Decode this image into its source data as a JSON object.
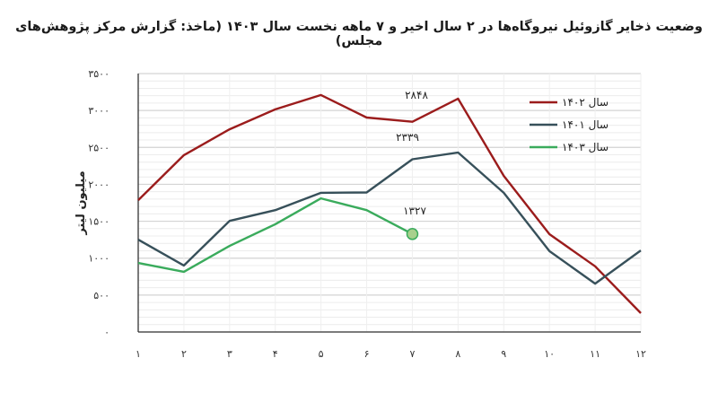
{
  "title": "وضعیت ذخایر گازوئیل نیروگاه‌ها در ۲ سال اخیر و ۷ ماهه نخست سال ۱۴۰۳ (ماخذ: گزارش مرکز پژوهش‌های مجلس)",
  "chart_data": {
    "type": "line",
    "title": "وضعیت ذخایر گازوئیل نیروگاه‌ها در ۲ سال اخیر و ۷ ماهه نخست سال ۱۴۰۳ (ماخذ: گزارش مرکز پژوهش‌های مجلس)",
    "xlabel": "",
    "ylabel": "میلیون لیتر",
    "x": [
      1,
      2,
      3,
      4,
      5,
      6,
      7,
      8,
      9,
      10,
      11,
      12
    ],
    "categories": [
      "۱",
      "۲",
      "۳",
      "۴",
      "۵",
      "۶",
      "۷",
      "۸",
      "۹",
      "۱۰",
      "۱۱",
      "۱۲"
    ],
    "ylim": [
      0,
      3500
    ],
    "yticks": [
      0,
      500,
      1000,
      1500,
      2000,
      2500,
      3000,
      3500
    ],
    "ytick_labels": [
      "۰",
      "۵۰۰",
      "۱۰۰۰",
      "۱۵۰۰",
      "۲۰۰۰",
      "۲۵۰۰",
      "۳۰۰۰",
      "۳۵۰۰"
    ],
    "minor_grid_step": 100,
    "grid": true,
    "legend_position": "top-right",
    "series": [
      {
        "name": "سال ۱۴۰۲",
        "color": "#9b1c1c",
        "values": [
          1785,
          2395,
          2745,
          3015,
          3210,
          2905,
          2848,
          3160,
          2115,
          1325,
          890,
          255
        ]
      },
      {
        "name": "سال ۱۴۰۱",
        "color": "#37505a",
        "values": [
          1250,
          900,
          1505,
          1650,
          1885,
          1890,
          2339,
          2430,
          1885,
          1095,
          655,
          1105
        ]
      },
      {
        "name": "سال ۱۴۰۳",
        "color": "#3aab5c",
        "values": [
          935,
          815,
          1165,
          1460,
          1810,
          1650,
          1327,
          null,
          null,
          null,
          null,
          null
        ]
      }
    ],
    "annotations": [
      {
        "text": "۲۸۴۸",
        "x": 7,
        "value": 2848,
        "series": "سال ۱۴۰۲"
      },
      {
        "text": "۲۳۳۹",
        "x": 7,
        "value": 2339,
        "series": "سال ۱۴۰۱"
      },
      {
        "text": "۱۳۲۷",
        "x": 7,
        "value": 1327,
        "series": "سال ۱۴۰۳"
      }
    ],
    "marker": {
      "series": "سال ۱۴۰۳",
      "x": 7,
      "fill": "#a8d08d",
      "stroke": "#3aab5c"
    }
  }
}
